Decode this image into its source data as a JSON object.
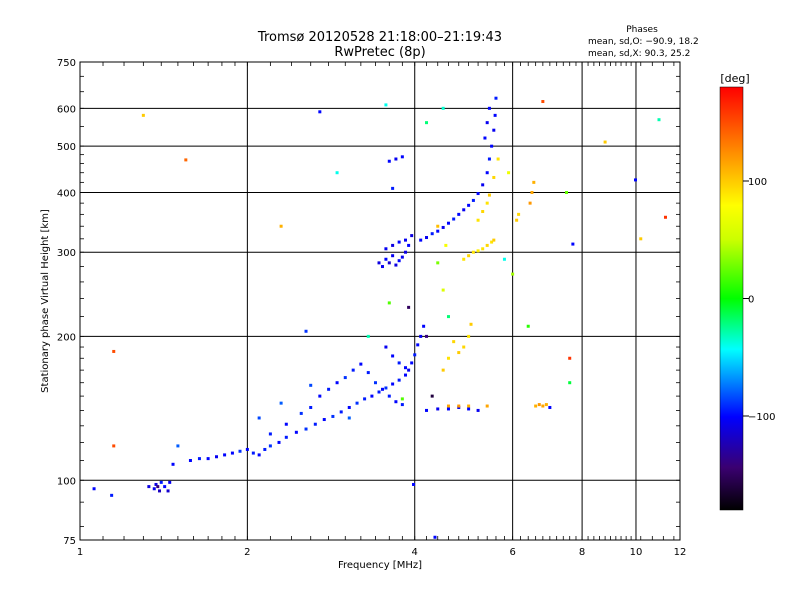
{
  "header": {
    "title_line1": "Tromsø 20120528 21:18:00–21:19:43",
    "title_line2": "RwPretec (8p)",
    "phases_title": "Phases",
    "phases_line1": "mean, sd,O: −90.9, 18.2",
    "phases_line2": "mean, sd,X:  90.3, 25.2"
  },
  "chart_data": {
    "type": "scatter",
    "title": "Tromsø 20120528 21:18:00–21:19:43",
    "subtitle": "RwPretec (8p)",
    "xlabel": "Frequency [MHz]",
    "ylabel": "Stationary phase Virtual Height [km]",
    "x_scale": "log",
    "y_scale": "log",
    "xlim": [
      1,
      12
    ],
    "ylim": [
      75,
      750
    ],
    "grid": true,
    "x_ticks": [
      "1",
      "2",
      "4",
      "6",
      "8",
      "10",
      "12"
    ],
    "x_tick_values": [
      1,
      2,
      4,
      6,
      8,
      10,
      12
    ],
    "y_ticks": [
      "75",
      "100",
      "200",
      "300",
      "400",
      "500",
      "600",
      "750"
    ],
    "y_tick_values": [
      75,
      100,
      200,
      300,
      400,
      500,
      600,
      750
    ],
    "colorbar": {
      "label": "[deg]",
      "range": [
        -180,
        180
      ],
      "ticks": [
        "100",
        "0",
        "−100"
      ],
      "tick_values": [
        100,
        0,
        -100
      ]
    },
    "series": [
      {
        "description": "O-mode traces (phase near -90 deg)",
        "points": [
          [
            1.06,
            96,
            -100
          ],
          [
            1.14,
            93,
            -95
          ],
          [
            1.33,
            97,
            -110
          ],
          [
            1.36,
            96,
            -105
          ],
          [
            1.39,
            95,
            -120
          ],
          [
            1.42,
            97,
            -100
          ],
          [
            1.44,
            95,
            -115
          ],
          [
            1.4,
            99,
            -95
          ],
          [
            1.37,
            98,
            -110
          ],
          [
            1.45,
            99,
            -105
          ],
          [
            1.47,
            108,
            -100
          ],
          [
            1.58,
            110,
            -100
          ],
          [
            1.64,
            111,
            -95
          ],
          [
            1.7,
            111,
            -100
          ],
          [
            1.76,
            112,
            -105
          ],
          [
            1.82,
            113,
            -100
          ],
          [
            1.88,
            114,
            -100
          ],
          [
            1.94,
            115,
            -90
          ],
          [
            2.0,
            116,
            -100
          ],
          [
            2.05,
            114,
            -95
          ],
          [
            2.1,
            113,
            -100
          ],
          [
            2.15,
            116,
            -95
          ],
          [
            2.2,
            118,
            -90
          ],
          [
            2.28,
            120,
            -100
          ],
          [
            2.35,
            123,
            -95
          ],
          [
            2.45,
            126,
            -100
          ],
          [
            2.55,
            128,
            -90
          ],
          [
            2.65,
            131,
            -95
          ],
          [
            2.75,
            134,
            -100
          ],
          [
            2.85,
            136,
            -90
          ],
          [
            2.95,
            139,
            -95
          ],
          [
            3.05,
            142,
            -100
          ],
          [
            3.15,
            145,
            -90
          ],
          [
            3.25,
            148,
            -95
          ],
          [
            3.35,
            150,
            -100
          ],
          [
            3.45,
            153,
            -95
          ],
          [
            3.55,
            156,
            -90
          ],
          [
            3.65,
            159,
            -100
          ],
          [
            3.75,
            162,
            -95
          ],
          [
            3.85,
            166,
            -100
          ],
          [
            3.9,
            170,
            -105
          ],
          [
            3.95,
            176,
            -100
          ],
          [
            4.0,
            183,
            -95
          ],
          [
            4.05,
            192,
            -100
          ],
          [
            4.1,
            200,
            -105
          ],
          [
            4.15,
            210,
            -100
          ],
          [
            2.2,
            125,
            -95
          ],
          [
            2.35,
            131,
            -100
          ],
          [
            2.5,
            138,
            -90
          ],
          [
            2.6,
            142,
            -95
          ],
          [
            2.7,
            150,
            -100
          ],
          [
            2.8,
            155,
            -95
          ],
          [
            2.9,
            160,
            -100
          ],
          [
            3.0,
            164,
            -90
          ],
          [
            3.1,
            170,
            -95
          ],
          [
            3.2,
            175,
            -100
          ],
          [
            3.3,
            168,
            -95
          ],
          [
            3.4,
            160,
            -90
          ],
          [
            3.5,
            155,
            -100
          ],
          [
            3.6,
            150,
            -95
          ],
          [
            3.7,
            146,
            -100
          ],
          [
            3.8,
            144,
            -95
          ],
          [
            3.55,
            190,
            -105
          ],
          [
            3.65,
            182,
            -100
          ],
          [
            3.75,
            176,
            -95
          ],
          [
            3.85,
            172,
            -100
          ],
          [
            3.45,
            285,
            -110
          ],
          [
            3.5,
            280,
            -105
          ],
          [
            3.55,
            290,
            -100
          ],
          [
            3.6,
            285,
            -115
          ],
          [
            3.65,
            295,
            -105
          ],
          [
            3.7,
            282,
            -110
          ],
          [
            3.75,
            288,
            -100
          ],
          [
            3.8,
            293,
            -105
          ],
          [
            3.85,
            300,
            -110
          ],
          [
            3.9,
            310,
            -100
          ],
          [
            3.55,
            305,
            -105
          ],
          [
            3.65,
            310,
            -110
          ],
          [
            3.75,
            315,
            -100
          ],
          [
            3.85,
            318,
            -105
          ],
          [
            3.95,
            325,
            -110
          ],
          [
            4.1,
            318,
            -100
          ],
          [
            4.2,
            322,
            -105
          ],
          [
            4.3,
            328,
            -95
          ],
          [
            4.4,
            332,
            -100
          ],
          [
            4.5,
            338,
            -105
          ],
          [
            4.6,
            345,
            -100
          ],
          [
            4.7,
            352,
            -95
          ],
          [
            4.8,
            360,
            -100
          ],
          [
            4.9,
            368,
            -105
          ],
          [
            5.0,
            376,
            -100
          ],
          [
            5.1,
            385,
            -95
          ],
          [
            5.2,
            398,
            -100
          ],
          [
            5.3,
            415,
            -105
          ],
          [
            5.4,
            440,
            -100
          ],
          [
            5.45,
            470,
            -95
          ],
          [
            5.5,
            500,
            -100
          ],
          [
            5.55,
            540,
            -105
          ],
          [
            5.58,
            580,
            -100
          ],
          [
            5.6,
            630,
            -95
          ],
          [
            5.35,
            520,
            -100
          ],
          [
            5.4,
            560,
            -105
          ],
          [
            5.45,
            600,
            -100
          ],
          [
            3.6,
            465,
            -100
          ],
          [
            3.7,
            470,
            -105
          ],
          [
            3.8,
            475,
            -100
          ],
          [
            3.65,
            408,
            -95
          ],
          [
            4.2,
            140,
            -100
          ],
          [
            4.4,
            141,
            -105
          ],
          [
            4.6,
            141,
            -100
          ],
          [
            4.8,
            142,
            -105
          ],
          [
            5.0,
            141,
            -100
          ],
          [
            5.2,
            140,
            -105
          ],
          [
            1.5,
            118,
            -80
          ],
          [
            2.1,
            135,
            -85
          ],
          [
            2.3,
            145,
            -80
          ],
          [
            2.6,
            158,
            -85
          ],
          [
            2.55,
            205,
            -90
          ],
          [
            2.7,
            590,
            -100
          ],
          [
            9.98,
            425,
            -100
          ],
          [
            3.98,
            98,
            -100
          ],
          [
            7.7,
            312,
            -100
          ],
          [
            4.35,
            76,
            -100
          ],
          [
            7.0,
            142,
            -100
          ],
          [
            3.05,
            135,
            -80
          ]
        ]
      },
      {
        "description": "X-mode traces (phase near +90 deg)",
        "points": [
          [
            4.9,
            290,
            90
          ],
          [
            5.0,
            295,
            95
          ],
          [
            5.1,
            300,
            90
          ],
          [
            5.2,
            302,
            85
          ],
          [
            5.3,
            305,
            90
          ],
          [
            5.4,
            310,
            95
          ],
          [
            5.5,
            315,
            90
          ],
          [
            5.55,
            318,
            100
          ],
          [
            5.2,
            350,
            90
          ],
          [
            5.3,
            365,
            95
          ],
          [
            5.4,
            380,
            90
          ],
          [
            5.45,
            395,
            100
          ],
          [
            5.55,
            430,
            95
          ],
          [
            5.65,
            470,
            90
          ],
          [
            4.8,
            185,
            100
          ],
          [
            4.9,
            190,
            95
          ],
          [
            5.0,
            200,
            90
          ],
          [
            5.05,
            212,
            100
          ],
          [
            4.7,
            195,
            95
          ],
          [
            4.6,
            180,
            90
          ],
          [
            4.5,
            170,
            100
          ],
          [
            6.6,
            143,
            110
          ],
          [
            6.7,
            144,
            120
          ],
          [
            6.8,
            143,
            115
          ],
          [
            6.9,
            144,
            110
          ],
          [
            6.45,
            380,
            120
          ],
          [
            6.5,
            400,
            115
          ],
          [
            6.55,
            420,
            110
          ],
          [
            6.1,
            350,
            100
          ],
          [
            6.15,
            360,
            95
          ],
          [
            4.6,
            143,
            115
          ],
          [
            4.8,
            143,
            120
          ],
          [
            5.0,
            143,
            110
          ],
          [
            5.4,
            143,
            115
          ],
          [
            1.3,
            580,
            100
          ],
          [
            4.4,
            340,
            105
          ],
          [
            8.8,
            510,
            100
          ],
          [
            10.2,
            320,
            100
          ],
          [
            2.3,
            340,
            110
          ]
        ]
      },
      {
        "description": "Scattered echoes (other phases)",
        "points": [
          [
            1.15,
            118,
            150
          ],
          [
            1.15,
            186,
            150
          ],
          [
            1.55,
            468,
            140
          ],
          [
            6.8,
            620,
            150
          ],
          [
            11.3,
            355,
            160
          ],
          [
            7.6,
            180,
            160
          ],
          [
            1.38,
            97,
            -140
          ],
          [
            4.2,
            200,
            -140
          ],
          [
            3.9,
            230,
            -150
          ],
          [
            4.3,
            150,
            -160
          ],
          [
            2.9,
            440,
            -40
          ],
          [
            3.3,
            200,
            -30
          ],
          [
            4.6,
            220,
            -20
          ],
          [
            7.6,
            160,
            -10
          ],
          [
            11.0,
            568,
            -30
          ],
          [
            4.2,
            560,
            -20
          ],
          [
            4.5,
            600,
            -35
          ],
          [
            5.8,
            290,
            -40
          ],
          [
            3.55,
            610,
            -40
          ],
          [
            3.6,
            235,
            20
          ],
          [
            6.4,
            210,
            10
          ],
          [
            4.4,
            285,
            30
          ],
          [
            3.8,
            148,
            20
          ],
          [
            7.5,
            400,
            25
          ],
          [
            6.0,
            270,
            40
          ],
          [
            4.5,
            250,
            60
          ],
          [
            4.55,
            310,
            75
          ],
          [
            5.9,
            440,
            70
          ]
        ]
      }
    ]
  }
}
